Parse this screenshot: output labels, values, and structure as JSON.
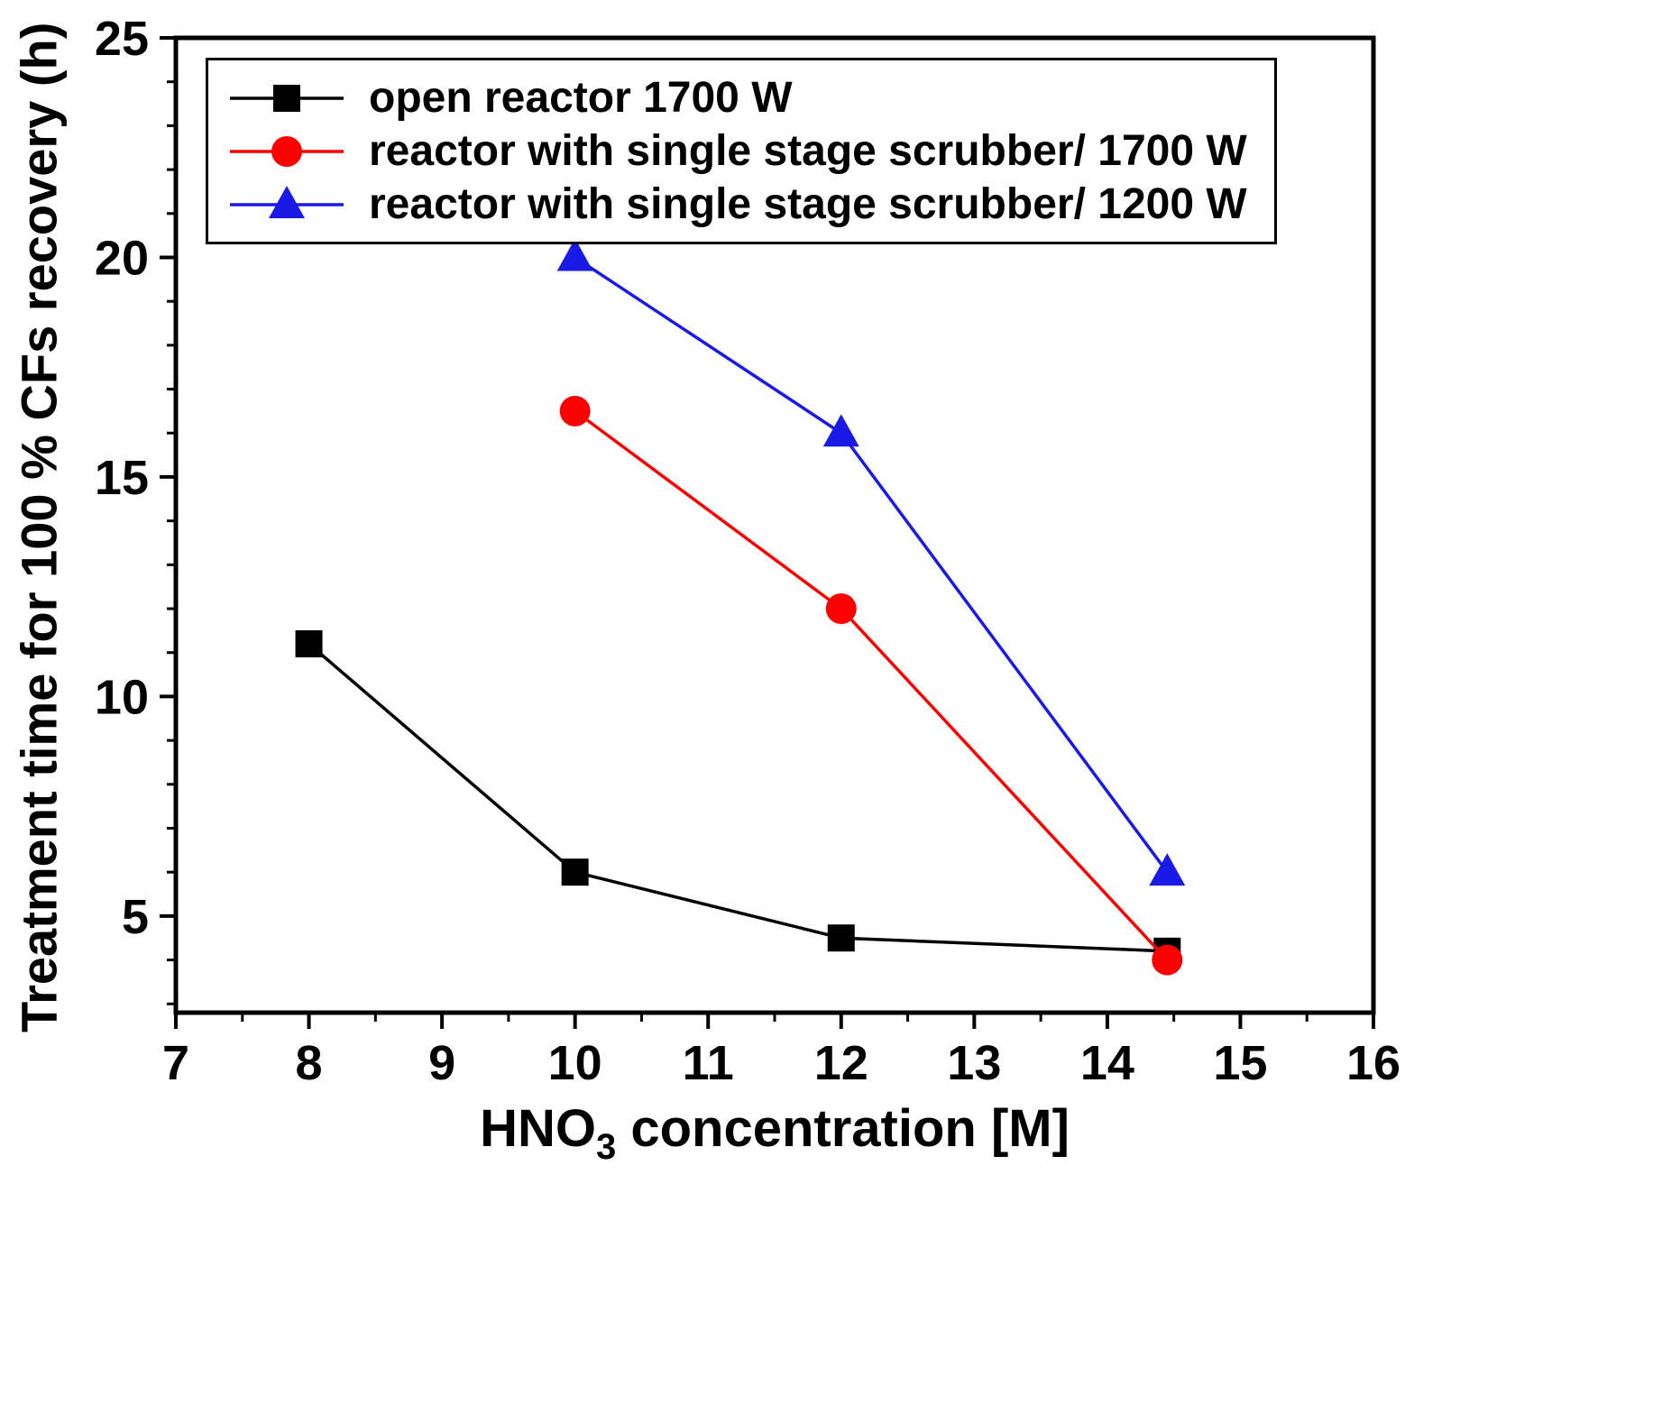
{
  "figure": {
    "background": "#ffffff",
    "axis_color": "#000000"
  },
  "chart_data": {
    "type": "line",
    "title": "",
    "xlabel_parts": {
      "base": "HNO",
      "sub": "3",
      "rest": " concentration [M]"
    },
    "ylabel": "Treatment time for 100 % CFs recovery (h)",
    "xlim": [
      7,
      16
    ],
    "ylim": [
      2.8,
      25
    ],
    "xticks": [
      7,
      8,
      9,
      10,
      11,
      12,
      13,
      14,
      15,
      16
    ],
    "yticks": [
      5,
      10,
      15,
      20,
      25
    ],
    "x_minor_step": 0.5,
    "y_minor_step": 1,
    "grid": false,
    "legend_position": "top-left-inside",
    "series": [
      {
        "name": "open reactor 1700 W",
        "color": "#000000",
        "marker": "square",
        "x": [
          8,
          10,
          12,
          14.45
        ],
        "y": [
          11.2,
          6.0,
          4.5,
          4.2
        ]
      },
      {
        "name": "reactor with single stage scrubber/ 1700 W",
        "color": "#ff0000",
        "marker": "circle",
        "x": [
          10,
          12,
          14.45
        ],
        "y": [
          16.5,
          12.0,
          4.0
        ]
      },
      {
        "name": "reactor with single stage scrubber/ 1200 W",
        "color": "#1a1ae6",
        "marker": "triangle",
        "x": [
          10,
          12,
          14.45
        ],
        "y": [
          20.0,
          16.0,
          6.0
        ]
      }
    ]
  }
}
